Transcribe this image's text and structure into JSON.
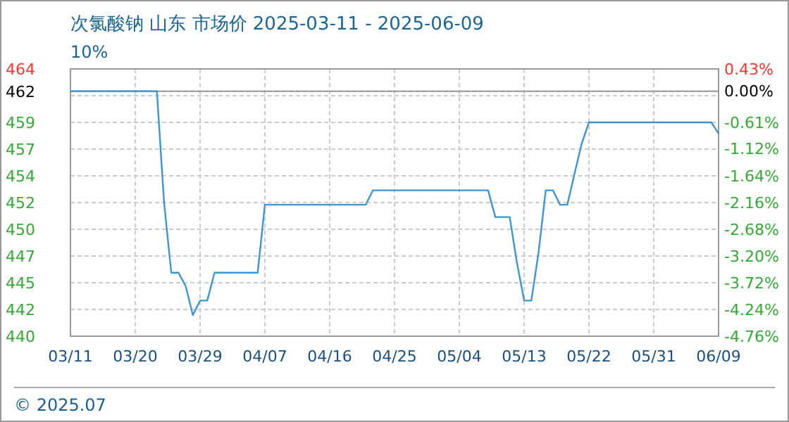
{
  "chart_data": {
    "type": "line",
    "title": "次氯酸钠 山东 市场价 2025-03-11 - 2025-06-09",
    "subtitle": "10%",
    "annotations": [
      "© 2025.07"
    ],
    "x": [
      "2025-03-11",
      "2025-03-23",
      "2025-03-24",
      "2025-03-25",
      "2025-03-26",
      "2025-03-27",
      "2025-03-28",
      "2025-03-29",
      "2025-03-30",
      "2025-03-31",
      "2025-04-06",
      "2025-04-07",
      "2025-04-21",
      "2025-04-22",
      "2025-05-08",
      "2025-05-09",
      "2025-05-11",
      "2025-05-12",
      "2025-05-13",
      "2025-05-14",
      "2025-05-15",
      "2025-05-16",
      "2025-05-17",
      "2025-05-18",
      "2025-05-19",
      "2025-05-20",
      "2025-05-21",
      "2025-05-22",
      "2025-06-08",
      "2025-06-09"
    ],
    "series": [
      {
        "color": "#3d95d4",
        "values": [
          462,
          462,
          452,
          445.7,
          445.7,
          444.5,
          441.9,
          443.2,
          443.2,
          445.7,
          445.7,
          451.8,
          451.8,
          453.1,
          453.1,
          450.7,
          450.7,
          446.6,
          443.2,
          443.2,
          447.5,
          453.1,
          453.1,
          451.8,
          451.8,
          454.6,
          457.3,
          459.2,
          459.2,
          458.2
        ]
      }
    ],
    "xlim": [
      "2025-03-11",
      "2025-06-09"
    ],
    "xticks": [
      {
        "value": "2025-03-11",
        "label": "03/11"
      },
      {
        "value": "2025-03-20",
        "label": "03/20"
      },
      {
        "value": "2025-03-29",
        "label": "03/29"
      },
      {
        "value": "2025-04-07",
        "label": "04/07"
      },
      {
        "value": "2025-04-16",
        "label": "04/16"
      },
      {
        "value": "2025-04-25",
        "label": "04/25"
      },
      {
        "value": "2025-05-04",
        "label": "05/04"
      },
      {
        "value": "2025-05-13",
        "label": "05/13"
      },
      {
        "value": "2025-05-22",
        "label": "05/22"
      },
      {
        "value": "2025-05-31",
        "label": "05/31"
      },
      {
        "value": "2025-06-09",
        "label": "06/09"
      }
    ],
    "ylim": [
      440,
      464
    ],
    "yticks": [
      464,
      {
        "value": 461.6,
        "label": null
      },
      462,
      {
        "value": 459.2,
        "label": "459"
      },
      {
        "value": 456.8,
        "label": "457"
      },
      {
        "value": 454.4,
        "label": "454"
      },
      452,
      {
        "value": 449.6,
        "label": "450"
      },
      {
        "value": 447.2,
        "label": "447"
      },
      {
        "value": 444.8,
        "label": "445"
      },
      {
        "value": 442.4,
        "label": "442"
      },
      440
    ],
    "y2lim": [
      -4.76,
      0.43
    ],
    "y2ticks": [
      {
        "value": 0.43,
        "label": "0.43%"
      },
      {
        "value": 0,
        "label": "0.00%"
      },
      {
        "value": -0.61,
        "label": "-0.61%"
      },
      {
        "value": -1.12,
        "label": "-1.12%"
      },
      {
        "value": -1.64,
        "label": "-1.64%"
      },
      {
        "value": -2.16,
        "label": "-2.16%"
      },
      {
        "value": -2.68,
        "label": "-2.68%"
      },
      {
        "value": -3.2,
        "label": "-3.20%"
      },
      {
        "value": -3.72,
        "label": "-3.72%"
      },
      {
        "value": -4.24,
        "label": "-4.24%"
      },
      {
        "value": -4.76,
        "label": "-4.76%"
      }
    ],
    "ref_lines": [
      {
        "axis": "y",
        "value": 462,
        "color": "#999999",
        "line_style": "solid"
      }
    ],
    "grid": true,
    "line_style": "solid"
  }
}
